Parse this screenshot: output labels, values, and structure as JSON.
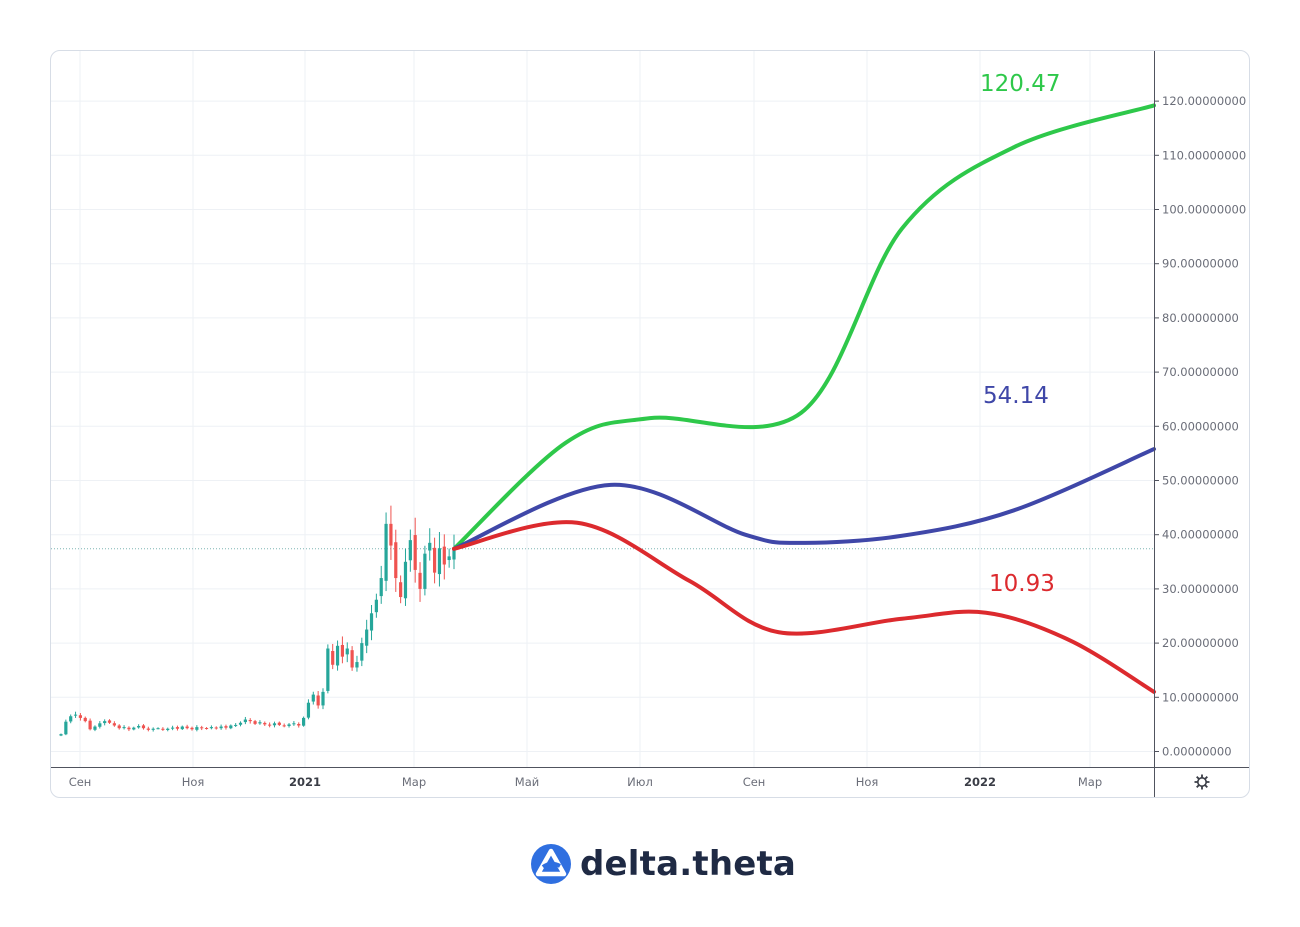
{
  "chart_data": {
    "type": "line",
    "title": "",
    "xlabel": "",
    "ylabel": "",
    "ylim": [
      -3,
      127
    ],
    "x_ticks": [
      {
        "label": "Сен",
        "bold": false
      },
      {
        "label": "Ноя",
        "bold": false
      },
      {
        "label": "2021",
        "bold": true
      },
      {
        "label": "Мар",
        "bold": false
      },
      {
        "label": "Май",
        "bold": false
      },
      {
        "label": "Июл",
        "bold": false
      },
      {
        "label": "Сен",
        "bold": false
      },
      {
        "label": "Ноя",
        "bold": false
      },
      {
        "label": "2022",
        "bold": true
      },
      {
        "label": "Мар",
        "bold": false
      }
    ],
    "y_ticks": [
      "0.00000000",
      "10.00000000",
      "20.00000000",
      "30.00000000",
      "40.00000000",
      "50.00000000",
      "60.00000000",
      "70.00000000",
      "80.00000000",
      "90.00000000",
      "100.00000000",
      "110.00000000",
      "120.00000000"
    ],
    "y_tick_values": [
      0,
      10,
      20,
      30,
      40,
      50,
      60,
      70,
      80,
      90,
      100,
      110,
      120
    ],
    "last_price": 37.4,
    "grid": true,
    "candles": {
      "up_color": "#26a69a",
      "down_color": "#ef5350",
      "close": [
        3.2,
        5.5,
        6.5,
        6.8,
        6.2,
        5.6,
        4.1,
        4.6,
        5.2,
        5.6,
        5.3,
        4.8,
        4.3,
        4.5,
        4.1,
        4.4,
        4.7,
        4.3,
        4.0,
        4.2,
        4.3,
        4.0,
        4.2,
        4.4,
        4.2,
        4.6,
        4.3,
        4.1,
        4.5,
        4.3,
        4.2,
        4.5,
        4.3,
        4.6,
        4.4,
        4.8,
        4.9,
        5.3,
        5.9,
        5.6,
        5.1,
        5.4,
        5.0,
        4.8,
        5.2,
        4.9,
        4.7,
        5.0,
        5.2,
        4.8,
        6.2,
        9.0,
        10.5,
        8.5,
        11.0,
        19.0,
        16.0,
        19.5,
        17.5,
        19.0,
        15.5,
        16.5,
        20.0,
        22.5,
        25.5,
        28.0,
        32.0,
        42.0,
        38.0,
        32.0,
        28.5,
        35.0,
        39.0,
        33.5,
        30.0,
        36.5,
        38.5,
        33.0,
        37.5,
        34.5,
        36.0,
        37.4
      ]
    },
    "series": [
      {
        "name": "",
        "color": "#2ec84a",
        "end_label": "120.47",
        "points": [
          [
            0,
            37.4
          ],
          [
            0.2,
            57
          ],
          [
            0.35,
            61.5
          ],
          [
            0.62,
            62.5
          ],
          [
            0.8,
            96.5
          ],
          [
            1.0,
            111.5
          ],
          [
            1.25,
            119.2
          ]
        ]
      },
      {
        "name": "",
        "color": "#3f47a8",
        "end_label": "54.14",
        "points": [
          [
            0,
            37.4
          ],
          [
            0.28,
            49.2
          ],
          [
            0.52,
            40.0
          ],
          [
            0.62,
            38.5
          ],
          [
            0.8,
            39.8
          ],
          [
            1.0,
            44.5
          ],
          [
            1.25,
            55.8
          ]
        ]
      },
      {
        "name": "",
        "color": "#dc2a2e",
        "end_label": "10.93",
        "points": [
          [
            0,
            37.4
          ],
          [
            0.22,
            42.2
          ],
          [
            0.42,
            31.5
          ],
          [
            0.58,
            22.0
          ],
          [
            0.8,
            24.5
          ],
          [
            0.95,
            25.6
          ],
          [
            1.1,
            20.5
          ],
          [
            1.25,
            11.0
          ]
        ]
      }
    ],
    "colors": {
      "axis_line": "#50535e",
      "grid": "#eef1f5",
      "tick_text": "#6a6d78",
      "last_price_line": "#7fb6b3"
    }
  },
  "axis_ui": {
    "settings_icon": "gear-icon"
  },
  "brand": {
    "name": "delta.theta",
    "color": "#2f6fe0"
  }
}
